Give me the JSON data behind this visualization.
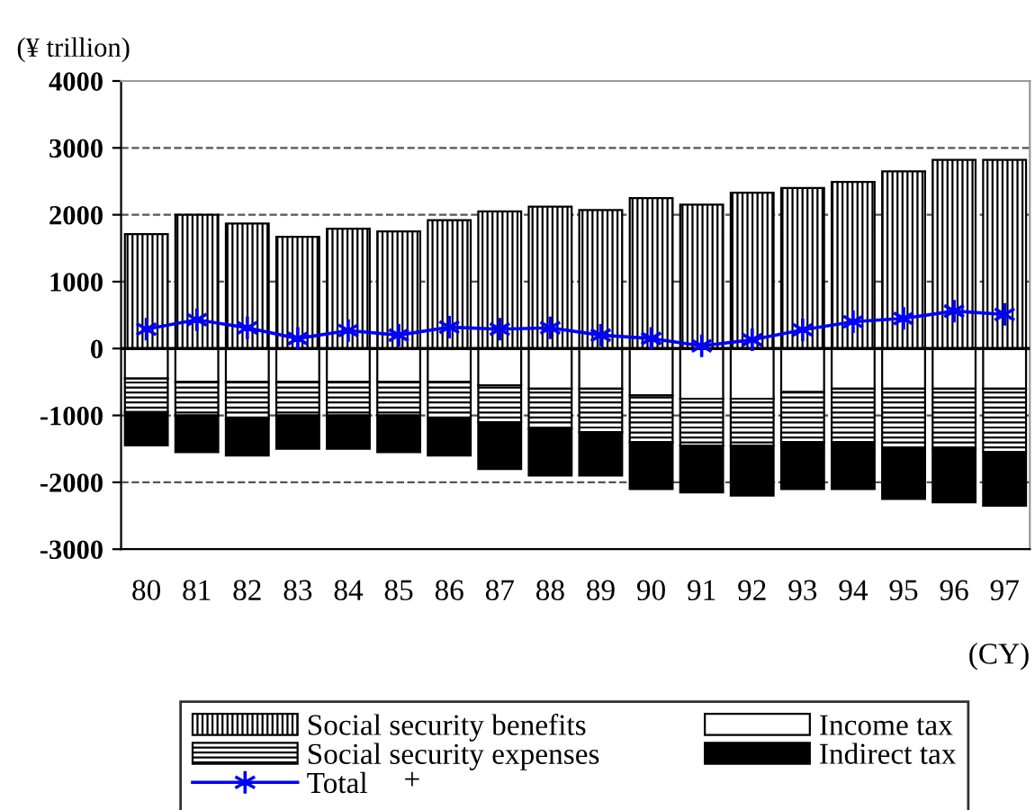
{
  "chart_data": {
    "type": "bar",
    "stacked": true,
    "ylabel": "(¥ trillion)",
    "xlabel": "(CY)",
    "categories": [
      "80",
      "81",
      "82",
      "83",
      "84",
      "85",
      "86",
      "87",
      "88",
      "89",
      "90",
      "91",
      "92",
      "93",
      "94",
      "95",
      "96",
      "97"
    ],
    "series": [
      {
        "name": "Social security benefits",
        "color": "#000000",
        "values": [
          1710,
          2000,
          1870,
          1670,
          1790,
          1750,
          1920,
          2050,
          2120,
          2070,
          2250,
          2150,
          2330,
          2400,
          2490,
          2650,
          2820,
          2820
        ]
      },
      {
        "name": "Income tax",
        "color": "#ffffff",
        "values": [
          -450,
          -500,
          -500,
          -500,
          -500,
          -500,
          -500,
          -550,
          -600,
          -600,
          -700,
          -750,
          -750,
          -650,
          -600,
          -600,
          -600,
          -600
        ]
      },
      {
        "name": "Social security expenses",
        "color": "#000000",
        "values": [
          -500,
          -500,
          -550,
          -500,
          -500,
          -500,
          -550,
          -550,
          -600,
          -650,
          -700,
          -700,
          -700,
          -750,
          -800,
          -900,
          -900,
          -950
        ]
      },
      {
        "name": "Indirect tax",
        "color": "#000000",
        "values": [
          -500,
          -550,
          -550,
          -500,
          -500,
          -550,
          -550,
          -700,
          -700,
          -650,
          -700,
          -700,
          -750,
          -700,
          -700,
          -750,
          -800,
          -800
        ]
      },
      {
        "name": "Total",
        "type": "line",
        "color": "#0000ff",
        "marker": "cross",
        "values": [
          290,
          430,
          310,
          150,
          270,
          200,
          320,
          290,
          310,
          200,
          150,
          40,
          130,
          280,
          400,
          450,
          560,
          510
        ]
      }
    ],
    "ylim": [
      -3000,
      4000
    ],
    "yticks": [
      -3000,
      -2000,
      -1000,
      0,
      1000,
      2000,
      3000,
      4000
    ],
    "grid": "y",
    "legend": "bottom",
    "annotations": [
      "+"
    ]
  }
}
